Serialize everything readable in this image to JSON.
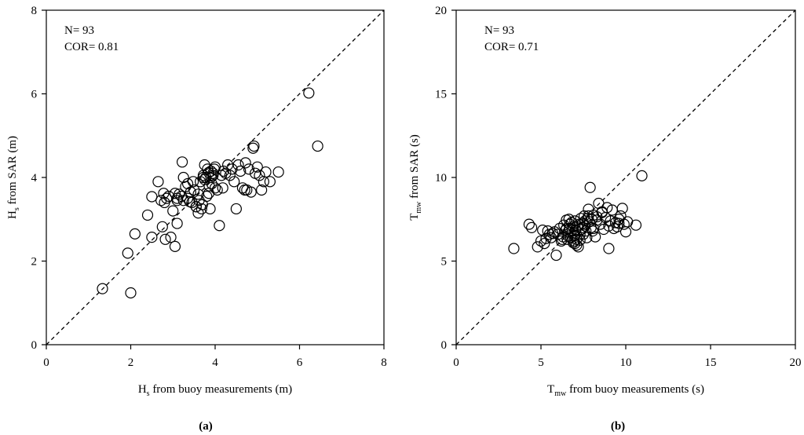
{
  "chart_data": [
    {
      "type": "scatter",
      "panel_label": "(a)",
      "stats": {
        "n": "N= 93",
        "cor": "COR= 0.81"
      },
      "xlabel": {
        "main": "H",
        "sub": "s",
        "rest": " from buoy measurements (m)"
      },
      "ylabel": {
        "main": "H",
        "sub": "s",
        "rest": " from SAR (m)"
      },
      "xlim": [
        0,
        8
      ],
      "ylim": [
        0,
        8
      ],
      "x_ticks": [
        "0",
        "2",
        "4",
        "6",
        "8"
      ],
      "y_ticks": [
        "0",
        "2",
        "4",
        "6",
        "8"
      ],
      "reference_line": "1:1 dashed",
      "x": [
        1.33,
        2.0,
        1.93,
        2.1,
        2.4,
        2.5,
        2.5,
        2.65,
        2.72,
        2.75,
        2.78,
        2.82,
        2.85,
        2.9,
        2.95,
        3.0,
        3.05,
        3.05,
        3.1,
        3.1,
        3.15,
        3.2,
        3.22,
        3.25,
        3.3,
        3.35,
        3.35,
        3.4,
        3.42,
        3.45,
        3.48,
        3.5,
        3.55,
        3.6,
        3.62,
        3.65,
        3.68,
        3.7,
        3.72,
        3.75,
        3.78,
        3.8,
        3.82,
        3.85,
        3.85,
        3.88,
        3.9,
        3.9,
        3.92,
        3.95,
        4.0,
        4.05,
        4.1,
        4.15,
        4.18,
        4.2,
        4.25,
        4.3,
        4.35,
        4.4,
        4.45,
        4.5,
        4.55,
        4.6,
        4.65,
        4.7,
        4.72,
        4.75,
        4.8,
        4.85,
        4.9,
        4.92,
        4.95,
        5.0,
        5.05,
        5.1,
        5.15,
        5.2,
        5.3,
        5.5,
        6.22,
        6.43,
        3.95,
        3.98,
        3.72,
        3.86,
        3.6,
        3.25,
        3.1,
        2.8,
        3.55,
        3.75,
        4.0
      ],
      "y": [
        1.34,
        1.24,
        2.19,
        2.65,
        3.1,
        2.57,
        3.54,
        3.9,
        3.45,
        2.82,
        3.62,
        2.52,
        3.5,
        3.55,
        2.57,
        3.2,
        3.62,
        2.35,
        2.9,
        3.5,
        3.6,
        3.55,
        4.37,
        3.45,
        3.78,
        3.5,
        3.85,
        3.42,
        3.65,
        3.4,
        3.9,
        3.7,
        3.3,
        3.15,
        3.45,
        3.9,
        3.25,
        3.35,
        4.05,
        4.3,
        4.0,
        3.55,
        4.2,
        4.12,
        3.62,
        3.25,
        4.0,
        4.15,
        3.85,
        4.05,
        3.75,
        3.7,
        2.85,
        4.05,
        3.75,
        4.15,
        4.1,
        4.3,
        4.05,
        4.2,
        3.9,
        3.25,
        4.3,
        4.15,
        3.75,
        3.7,
        4.35,
        3.7,
        4.2,
        3.65,
        4.7,
        4.75,
        4.1,
        4.25,
        4.05,
        3.7,
        3.9,
        4.13,
        3.9,
        4.13,
        6.02,
        4.75,
        4.1,
        4.2,
        4.0,
        3.8,
        3.6,
        4.0,
        3.45,
        3.4,
        3.3,
        3.95,
        4.25
      ]
    },
    {
      "type": "scatter",
      "panel_label": "(b)",
      "stats": {
        "n": "N= 93",
        "cor": "COR= 0.71"
      },
      "xlabel": {
        "main": "T",
        "sub": "mw",
        "rest": " from buoy measurements (s)"
      },
      "ylabel": {
        "main": "T",
        "sub": "mw",
        "rest": " from SAR (s)"
      },
      "xlim": [
        0,
        20
      ],
      "ylim": [
        0,
        20
      ],
      "x_ticks": [
        "0",
        "5",
        "10",
        "15",
        "20"
      ],
      "y_ticks": [
        "0",
        "5",
        "10",
        "15",
        "20"
      ],
      "reference_line": "1:1 dashed",
      "x": [
        3.4,
        4.3,
        4.45,
        4.8,
        5.0,
        5.1,
        5.3,
        5.4,
        5.6,
        5.8,
        5.9,
        6.0,
        6.1,
        6.2,
        6.3,
        6.35,
        6.45,
        6.5,
        6.55,
        6.6,
        6.65,
        6.7,
        6.75,
        6.8,
        6.85,
        6.9,
        6.95,
        7.0,
        7.0,
        7.05,
        7.1,
        7.15,
        7.2,
        7.25,
        7.3,
        7.35,
        7.4,
        7.45,
        7.5,
        7.55,
        7.6,
        7.65,
        7.7,
        7.75,
        7.8,
        7.85,
        7.9,
        7.95,
        8.0,
        8.05,
        8.1,
        8.2,
        8.3,
        8.4,
        8.5,
        8.6,
        8.7,
        8.8,
        8.9,
        9.0,
        9.1,
        9.2,
        9.3,
        9.4,
        9.5,
        9.6,
        9.7,
        9.8,
        9.9,
        10.0,
        10.1,
        10.6,
        10.95,
        6.25,
        6.6,
        6.9,
        7.1,
        7.3,
        7.6,
        8.1,
        5.2,
        5.7,
        6.7,
        7.0,
        6.5,
        7.8,
        8.6,
        9.0,
        5.5,
        6.95,
        7.45,
        8.3,
        9.6
      ],
      "y": [
        5.75,
        7.2,
        7.0,
        5.85,
        6.2,
        6.85,
        6.35,
        6.8,
        6.4,
        6.75,
        5.35,
        6.6,
        6.95,
        6.2,
        6.45,
        7.15,
        6.85,
        7.45,
        6.3,
        6.75,
        7.5,
        6.95,
        6.4,
        7.3,
        6.85,
        7.05,
        6.5,
        6.05,
        7.4,
        6.85,
        6.3,
        7.1,
        5.85,
        7.2,
        6.6,
        7.55,
        6.9,
        7.25,
        6.6,
        7.7,
        7.1,
        6.8,
        6.4,
        7.55,
        8.1,
        7.35,
        9.4,
        7.0,
        7.5,
        6.8,
        6.95,
        6.45,
        7.65,
        8.45,
        7.2,
        7.9,
        6.9,
        7.6,
        8.2,
        5.75,
        7.4,
        8.05,
        6.95,
        7.3,
        7.05,
        7.25,
        7.7,
        8.15,
        7.2,
        6.75,
        7.35,
        7.15,
        10.1,
        6.3,
        6.5,
        6.1,
        5.95,
        6.25,
        7.4,
        7.75,
        6.05,
        6.65,
        7.2,
        6.55,
        6.95,
        7.7,
        7.95,
        7.1,
        6.6,
        6.2,
        7.0,
        7.45,
        7.5
      ]
    }
  ]
}
